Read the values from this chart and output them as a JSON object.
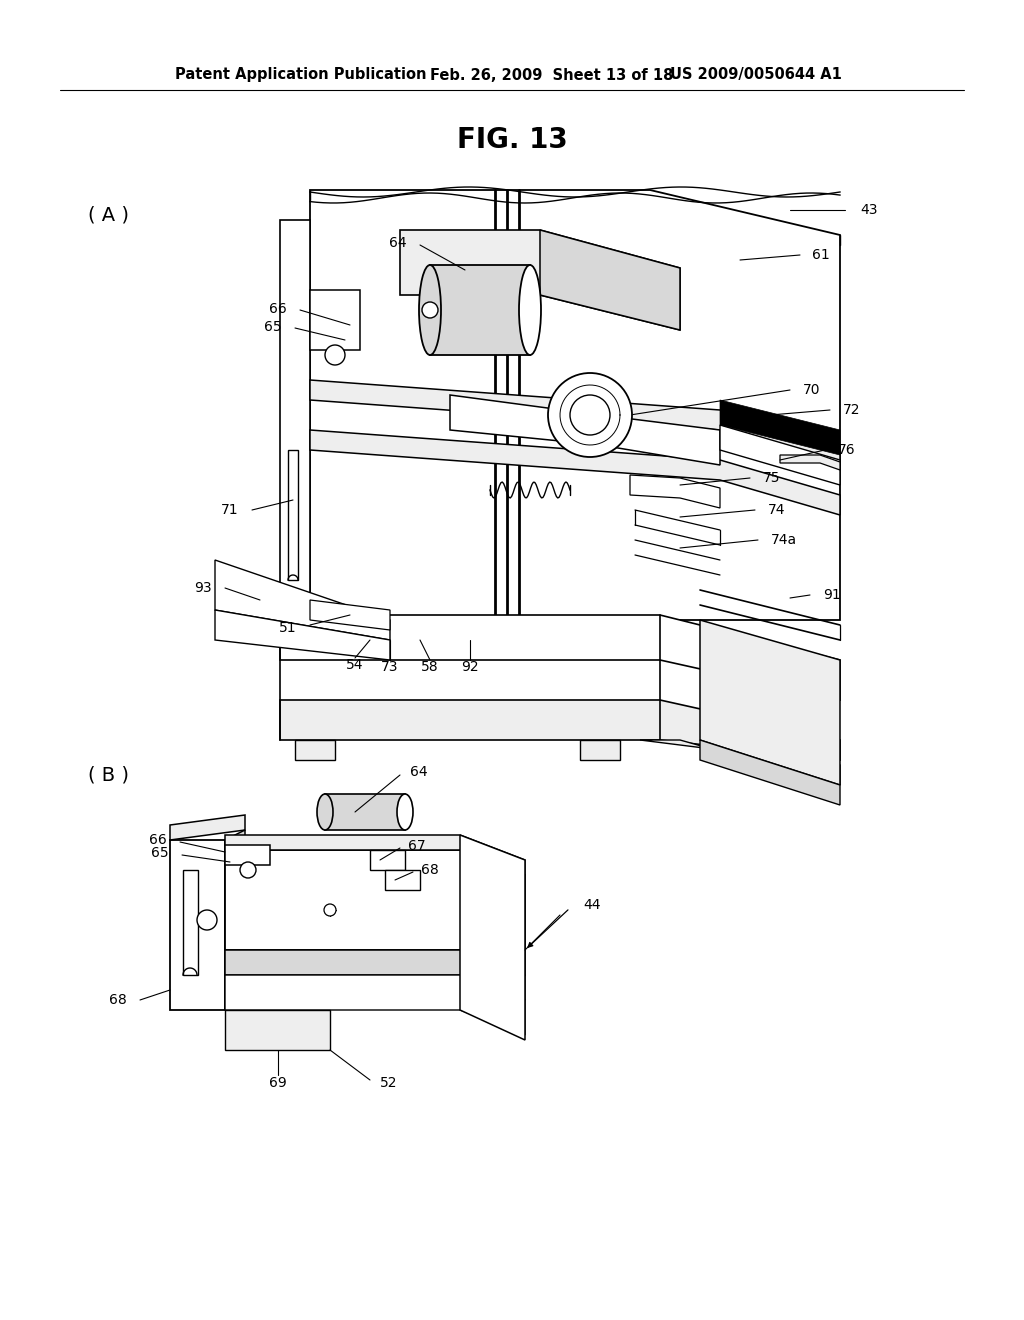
{
  "bg_color": "#ffffff",
  "header_left": "Patent Application Publication",
  "header_mid": "Feb. 26, 2009  Sheet 13 of 18",
  "header_right": "US 2009/0050644 A1",
  "fig_title": "FIG. 13",
  "sub_a": "( A )",
  "sub_b": "( B )",
  "line_color": "#000000",
  "gray_fill": "#d8d8d8",
  "light_gray": "#eeeeee",
  "dark_fill": "#1a1a1a"
}
